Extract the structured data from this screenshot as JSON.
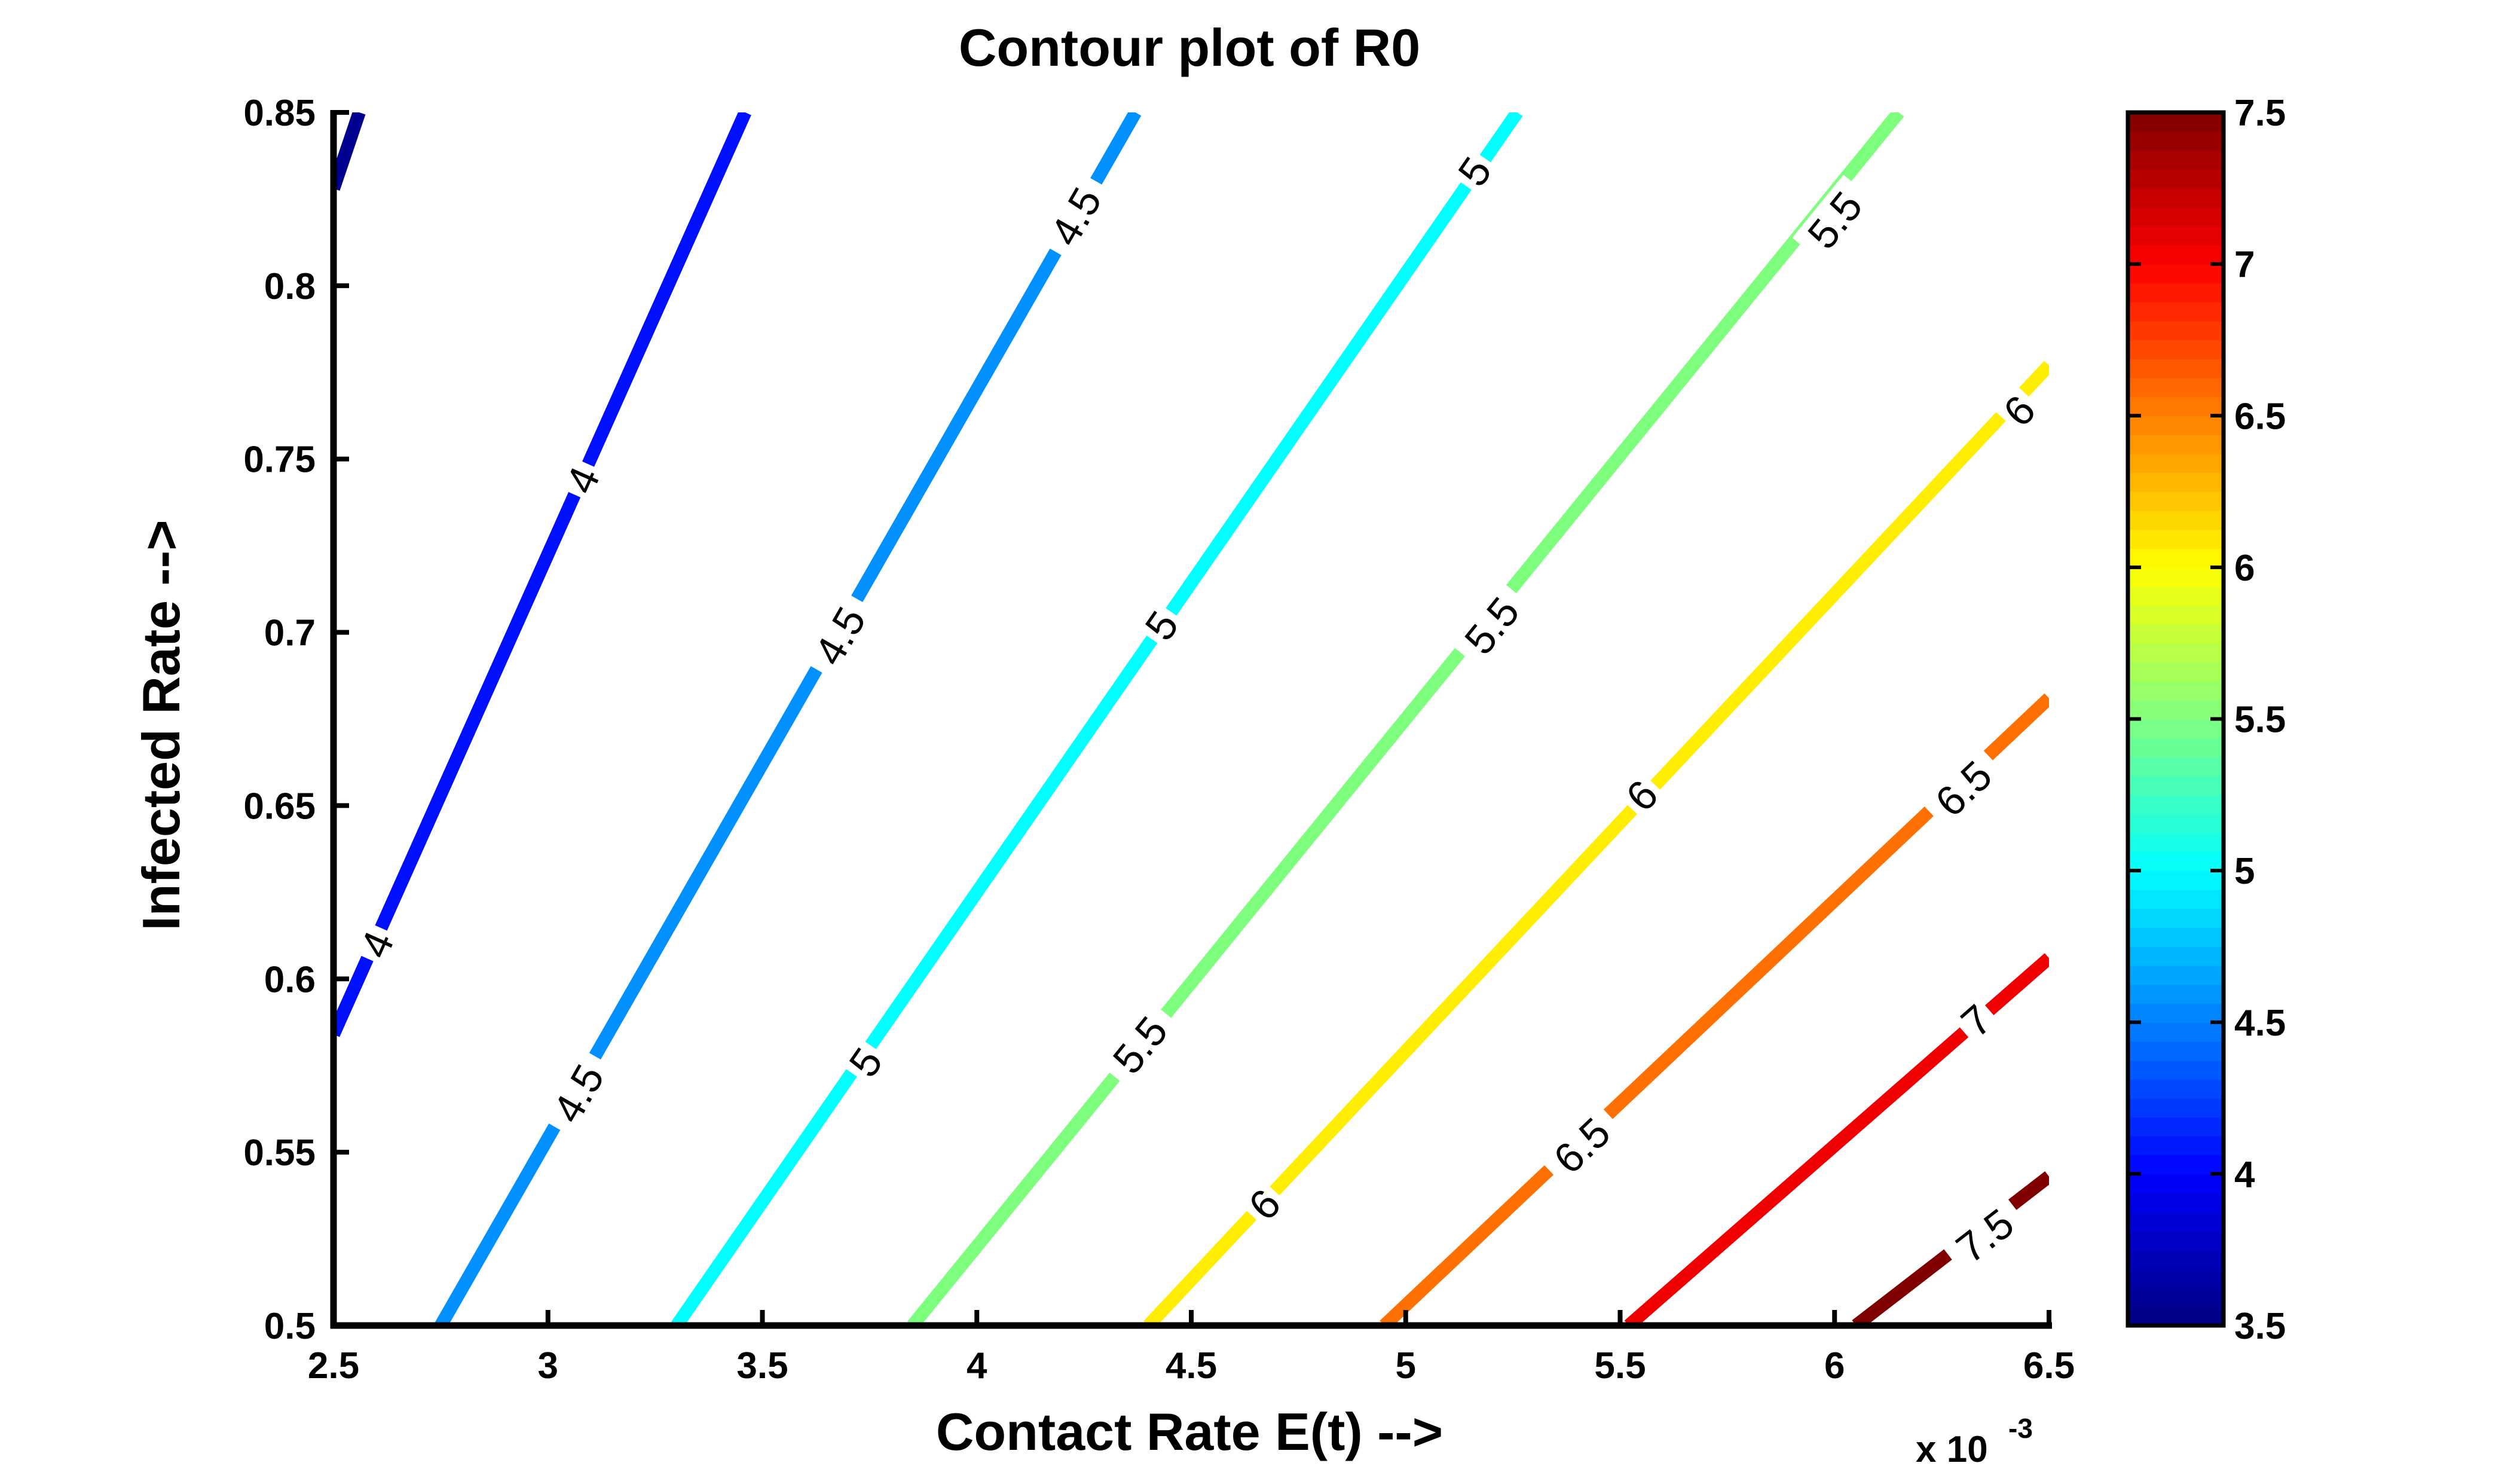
{
  "chart_data": {
    "type": "contour",
    "title": "Contour plot of R0",
    "xlabel": "Contact Rate E(t) -->",
    "ylabel": "Infected Rate -->",
    "x_multiplier": "x 10",
    "x_multiplier_exp": "-3",
    "xlim": [
      2.5,
      6.5
    ],
    "ylim": [
      0.5,
      0.85
    ],
    "xticks": [
      "2.5",
      "3",
      "3.5",
      "4",
      "4.5",
      "5",
      "5.5",
      "6",
      "6.5"
    ],
    "yticks": [
      "0.5",
      "0.55",
      "0.6",
      "0.65",
      "0.7",
      "0.75",
      "0.8",
      "0.85"
    ],
    "colorbar": {
      "range": [
        3.5,
        7.5
      ],
      "ticks": [
        "3.5",
        "4",
        "4.5",
        "5",
        "5.5",
        "6",
        "6.5",
        "7",
        "7.5"
      ],
      "colormap": "jet"
    },
    "levels": [
      {
        "value": 3.5,
        "color": "#000090",
        "points": [
          [
            2.5,
            0.828
          ],
          [
            2.56,
            0.85
          ]
        ],
        "labels": []
      },
      {
        "value": 4,
        "color": "#0010ff",
        "points": [
          [
            2.5,
            0.584
          ],
          [
            3.46,
            0.85
          ]
        ],
        "labels": [
          [
            "4",
            2.6,
            0.61
          ],
          [
            "4",
            3.08,
            0.744
          ]
        ]
      },
      {
        "value": 4.5,
        "color": "#0090ff",
        "points": [
          [
            2.75,
            0.5
          ],
          [
            4.37,
            0.85
          ]
        ],
        "labels": [
          [
            "4.5",
            3.07,
            0.567
          ],
          [
            "4.5",
            3.68,
            0.699
          ],
          [
            "4.5",
            4.23,
            0.82
          ]
        ]
      },
      {
        "value": 5,
        "color": "#00ffff",
        "points": [
          [
            3.3,
            0.5
          ],
          [
            5.26,
            0.85
          ]
        ],
        "labels": [
          [
            "5",
            3.74,
            0.576
          ],
          [
            "5",
            4.43,
            0.702
          ],
          [
            "5",
            5.16,
            0.833
          ]
        ]
      },
      {
        "value": 5.5,
        "color": "#7dff7d",
        "points": [
          [
            3.85,
            0.5
          ],
          [
            6.15,
            0.85
          ]
        ],
        "labels": [
          [
            "5.5",
            4.38,
            0.581
          ],
          [
            "5.5",
            5.2,
            0.702
          ],
          [
            "5.5",
            6.0,
            0.819
          ]
        ]
      },
      {
        "value": 6,
        "color": "#ffee00",
        "points": [
          [
            4.4,
            0.5
          ],
          [
            6.5,
            0.777
          ]
        ],
        "labels": [
          [
            "6",
            4.67,
            0.535
          ],
          [
            "6",
            5.55,
            0.653
          ],
          [
            "6",
            6.43,
            0.764
          ]
        ]
      },
      {
        "value": 6.5,
        "color": "#ff7000",
        "points": [
          [
            4.95,
            0.5
          ],
          [
            6.5,
            0.681
          ]
        ],
        "labels": [
          [
            "6.5",
            5.41,
            0.552
          ],
          [
            "6.5",
            6.3,
            0.655
          ]
        ]
      },
      {
        "value": 7,
        "color": "#f00000",
        "points": [
          [
            5.52,
            0.5
          ],
          [
            6.5,
            0.606
          ]
        ],
        "labels": [
          [
            "7",
            6.33,
            0.588
          ]
        ]
      },
      {
        "value": 7.5,
        "color": "#800000",
        "points": [
          [
            6.05,
            0.5
          ],
          [
            6.5,
            0.543
          ]
        ],
        "labels": [
          [
            "7.5",
            6.35,
            0.526
          ]
        ]
      }
    ]
  }
}
